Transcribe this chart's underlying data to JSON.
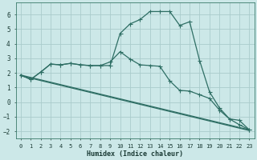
{
  "xlabel": "Humidex (Indice chaleur)",
  "bg_color": "#cce8e8",
  "grid_color": "#aacccc",
  "line_color": "#2e6e64",
  "xlim": [
    -0.5,
    23.5
  ],
  "ylim": [
    -2.5,
    6.8
  ],
  "xticks": [
    0,
    1,
    2,
    3,
    4,
    5,
    6,
    7,
    8,
    9,
    10,
    11,
    12,
    13,
    14,
    15,
    16,
    17,
    18,
    19,
    20,
    21,
    22,
    23
  ],
  "yticks": [
    -2,
    -1,
    0,
    1,
    2,
    3,
    4,
    5,
    6
  ],
  "line1_x": [
    0,
    1,
    2,
    3,
    4,
    5,
    6,
    7,
    8,
    9,
    10,
    11,
    12,
    13,
    14,
    15,
    16,
    17,
    18,
    19,
    20,
    21,
    22,
    23
  ],
  "line1_y": [
    1.85,
    1.55,
    2.05,
    2.6,
    2.55,
    2.65,
    2.55,
    2.5,
    2.5,
    2.5,
    4.7,
    5.35,
    5.65,
    6.2,
    6.2,
    6.2,
    5.25,
    5.5,
    2.85,
    0.7,
    -0.4,
    -1.15,
    -1.25,
    -1.9
  ],
  "line2_x": [
    0,
    1,
    2,
    3,
    4,
    5,
    6,
    7,
    8,
    9,
    10,
    11,
    12,
    13,
    14,
    15,
    16,
    17,
    18,
    19,
    20,
    21,
    22,
    23
  ],
  "line2_y": [
    1.85,
    1.55,
    2.05,
    2.6,
    2.55,
    2.65,
    2.55,
    2.5,
    2.5,
    2.75,
    3.45,
    2.95,
    2.55,
    2.5,
    2.45,
    1.45,
    0.8,
    0.75,
    0.5,
    0.25,
    -0.55,
    -1.15,
    -1.55,
    -1.9
  ],
  "line3_x": [
    0,
    23
  ],
  "line3_y": [
    1.85,
    -1.9
  ],
  "line4_x": [
    0,
    23
  ],
  "line4_y": [
    1.85,
    -1.9
  ]
}
